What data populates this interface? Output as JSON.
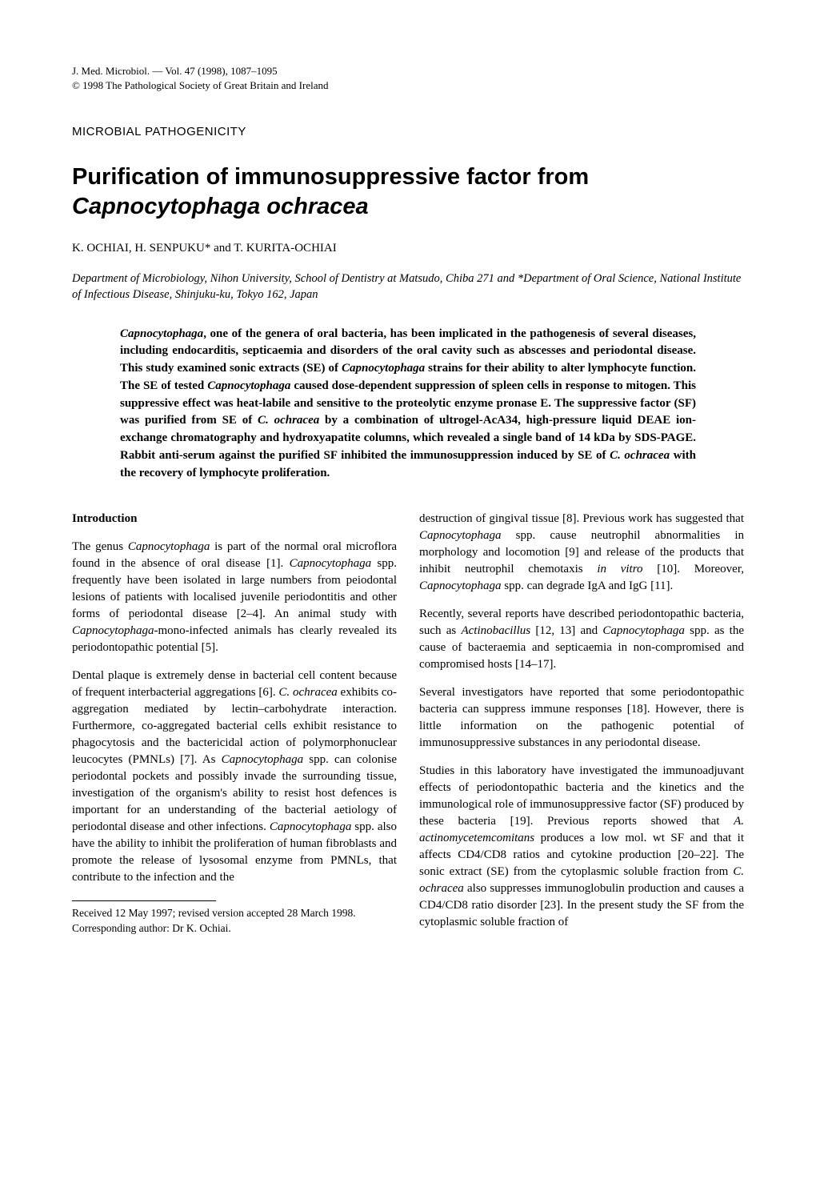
{
  "journal": {
    "citation": "J. Med. Microbiol. — Vol. 47 (1998), 1087–1095",
    "copyright": "© 1998 The Pathological Society of Great Britain and Ireland"
  },
  "section_label": "MICROBIAL PATHOGENICITY",
  "title_part1": "Purification of immunosuppressive factor from ",
  "title_italic": "Capnocytophaga ochracea",
  "authors": "K. OCHIAI, H. SENPUKU* and T. KURITA-OCHIAI",
  "affiliation": "Department of Microbiology, Nihon University, School of Dentistry at Matsudo, Chiba 271 and *Department of Oral Science, National Institute of Infectious Disease, Shinjuku-ku, Tokyo 162, Japan",
  "abstract": {
    "s1a": "Capnocytophaga",
    "s1b": ", one of the genera of oral bacteria, has been implicated in the pathogenesis of several diseases, including endocarditis, septicaemia and disorders of the oral cavity such as abscesses and periodontal disease. This study examined sonic extracts (SE) of ",
    "s1c": "Capnocytophaga",
    "s1d": " strains for their ability to alter lymphocyte function. The SE of tested ",
    "s1e": "Capnocytophaga",
    "s1f": " caused dose-dependent suppression of spleen cells in response to mitogen. This suppressive effect was heat-labile and sensitive to the proteolytic enzyme pronase E. The suppressive factor (SF) was purified from SE of ",
    "s1g": "C. ochracea",
    "s1h": " by a combination of ultrogel-AcA34, high-pressure liquid DEAE ion-exchange chromatography and hydroxyapatite columns, which revealed a single band of 14 kDa by SDS-PAGE. Rabbit anti-serum against the purified SF inhibited the immunosuppression induced by SE of ",
    "s1i": "C. ochracea",
    "s1j": " with the recovery of lymphocyte proliferation."
  },
  "left_column": {
    "heading": "Introduction",
    "p1a": "The genus ",
    "p1b": "Capnocytophaga",
    "p1c": " is part of the normal oral microflora found in the absence of oral disease [1]. ",
    "p1d": "Capnocytophaga",
    "p1e": " spp. frequently have been isolated in large numbers from peiodontal lesions of patients with localised juvenile periodontitis and other forms of periodontal disease [2–4]. An animal study with ",
    "p1f": "Capnocytophaga",
    "p1g": "-mono-infected animals has clearly revealed its periodontopathic potential [5].",
    "p2a": "Dental plaque is extremely dense in bacterial cell content because of frequent interbacterial aggregations [6]. ",
    "p2b": "C. ochracea",
    "p2c": " exhibits co-aggregation mediated by lectin–carbohydrate interaction. Furthermore, co-aggregated bacterial cells exhibit resistance to phagocytosis and the bactericidal action of polymorphonuclear leucocytes (PMNLs) [7]. As ",
    "p2d": "Capnocytophaga",
    "p2e": " spp. can colonise periodontal pockets and possibly invade the surrounding tissue, investigation of the organism's ability to resist host defences is important for an understanding of the bacterial aetiology of periodontal disease and other infections. ",
    "p2f": "Capnocytophaga",
    "p2g": " spp. also have the ability to inhibit the proliferation of human fibroblasts and promote the release of lysosomal enzyme from PMNLs, that contribute to the infection and the",
    "footnote1": "Received 12 May 1997; revised version accepted 28 March 1998.",
    "footnote2": "Corresponding author: Dr K. Ochiai."
  },
  "right_column": {
    "p1a": "destruction of gingival tissue [8]. Previous work has suggested that ",
    "p1b": "Capnocytophaga",
    "p1c": " spp. cause neutrophil abnormalities in morphology and locomotion [9] and release of the products that inhibit neutrophil chemotaxis ",
    "p1d": "in vitro",
    "p1e": " [10]. Moreover, ",
    "p1f": "Capnocytophaga",
    "p1g": " spp. can degrade IgA and IgG [11].",
    "p2a": "Recently, several reports have described periodontopathic bacteria, such as ",
    "p2b": "Actinobacillus",
    "p2c": " [12, 13] and ",
    "p2d": "Capnocytophaga",
    "p2e": " spp. as the cause of bacteraemia and septicaemia in non-compromised and compromised hosts [14–17].",
    "p3": "Several investigators have reported that some periodontopathic bacteria can suppress immune responses [18]. However, there is little information on the pathogenic potential of immunosuppressive substances in any periodontal disease.",
    "p4a": "Studies in this laboratory have investigated the immunoadjuvant effects of periodontopathic bacteria and the kinetics and the immunological role of immunosuppressive factor (SF) produced by these bacteria [19]. Previous reports showed that ",
    "p4b": "A. actinomycetemcomitans",
    "p4c": " produces a low mol. wt SF and that it affects CD4/CD8 ratios and cytokine production [20–22]. The sonic extract (SE) from the cytoplasmic soluble fraction from ",
    "p4d": "C. ochracea",
    "p4e": " also suppresses immunoglobulin production and causes a CD4/CD8 ratio disorder [23]. In the present study the SF from the cytoplasmic soluble fraction of"
  }
}
